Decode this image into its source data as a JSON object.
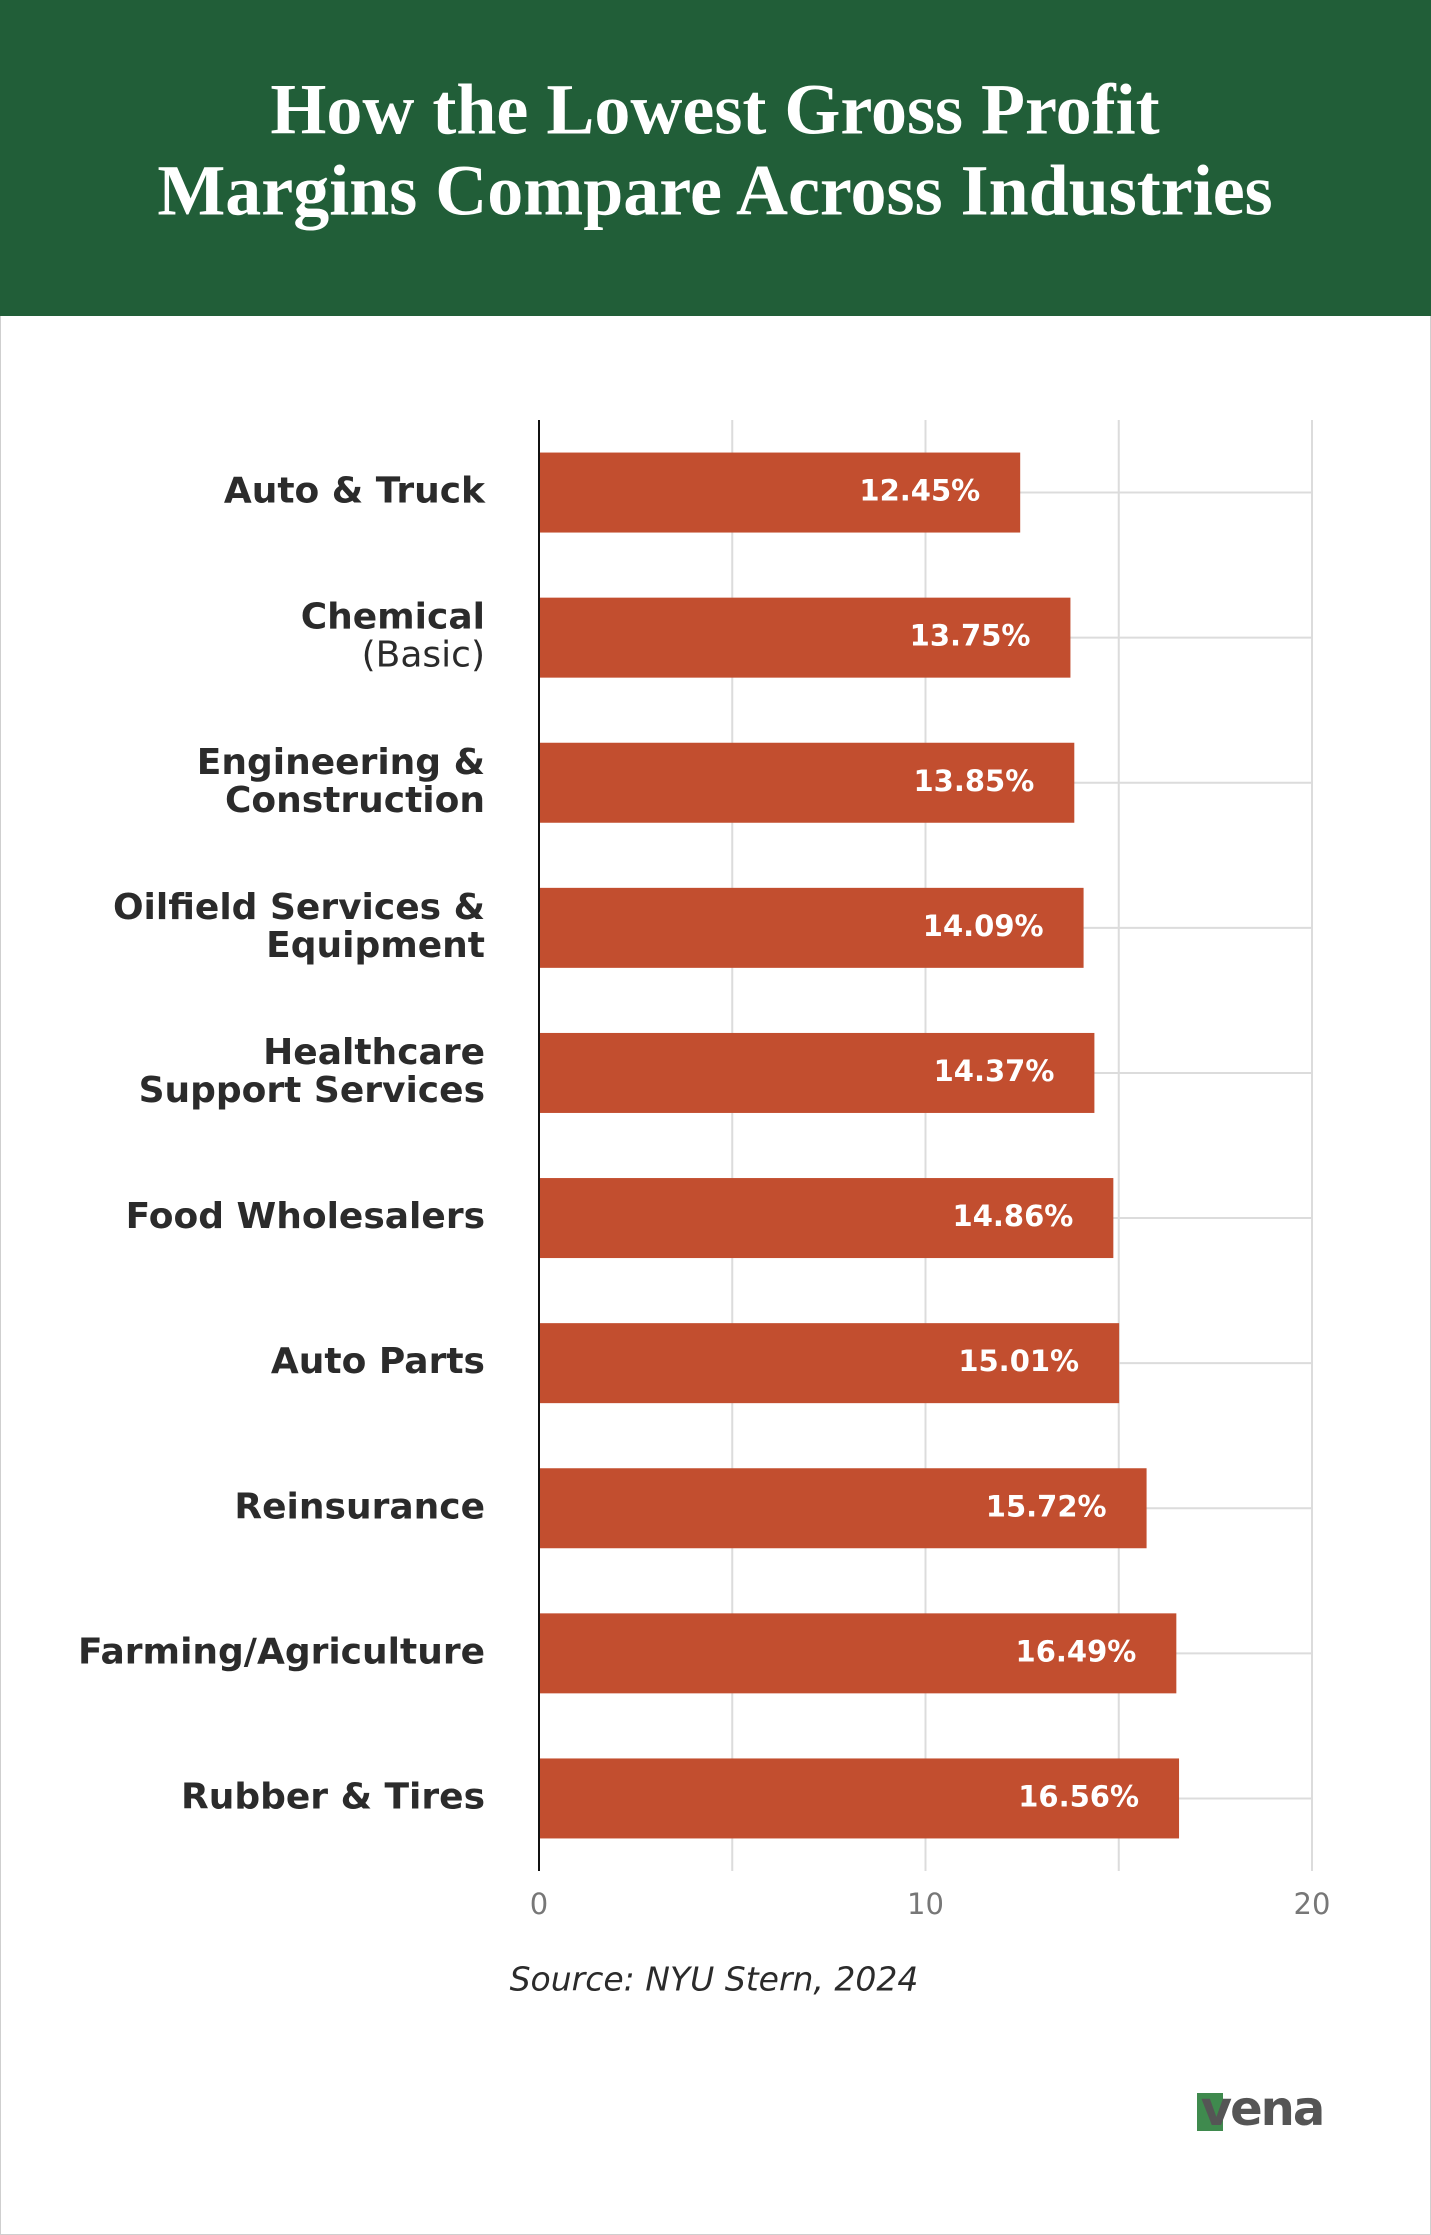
{
  "chart_data": {
    "type": "bar",
    "orientation": "horizontal",
    "title": "How the Lowest Gross Profit Margins Compare Across Industries",
    "title_lines": [
      "How the Lowest Gross Profit",
      "Margins Compare Across Industries"
    ],
    "categories": [
      [
        "Auto & Truck"
      ],
      [
        "Chemical",
        "(Basic)"
      ],
      [
        "Engineering &",
        "Construction"
      ],
      [
        "Oilfield Services &",
        "Equipment"
      ],
      [
        "Healthcare",
        "Support Services"
      ],
      [
        "Food Wholesalers"
      ],
      [
        "Auto Parts"
      ],
      [
        "Reinsurance"
      ],
      [
        "Farming/Agriculture"
      ],
      [
        "Rubber & Tires"
      ]
    ],
    "values": [
      12.45,
      13.75,
      13.85,
      14.09,
      14.37,
      14.86,
      15.01,
      15.72,
      16.49,
      16.56
    ],
    "value_labels": [
      "12.45%",
      "13.75%",
      "13.85%",
      "14.09%",
      "14.37%",
      "14.86%",
      "15.01%",
      "15.72%",
      "16.49%",
      "16.56%"
    ],
    "color": "#c24e2f",
    "xlim": [
      0,
      20
    ],
    "xticks": [
      0,
      10,
      20
    ],
    "minor_xticks": [
      5,
      15
    ],
    "grid": true,
    "source": "Source: NYU Stern, 2024",
    "logo": "vena"
  }
}
